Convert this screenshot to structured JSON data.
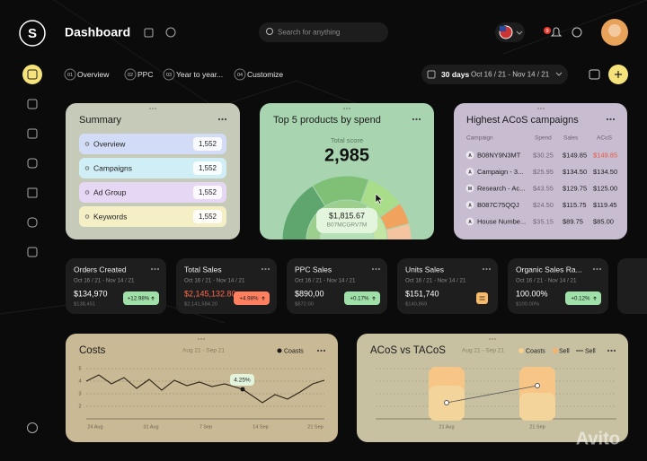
{
  "header": {
    "logo": "S",
    "title": "Dashboard",
    "search": "Search for anything",
    "notifications": "9"
  },
  "tabs": [
    {
      "number": "01",
      "label": "Overview"
    },
    {
      "number": "02",
      "label": "PPC"
    },
    {
      "number": "03",
      "label": "Year to year..."
    },
    {
      "number": "04",
      "label": "Customize"
    }
  ],
  "date_range": {
    "period": "30 days",
    "range": "Oct 16 / 21 - Nov 14 / 21"
  },
  "summary": {
    "title": "Summary",
    "items": [
      {
        "label": "Overview",
        "value": "1,552",
        "color": "#d3dcf6"
      },
      {
        "label": "Campaigns",
        "value": "1,552",
        "color": "#cfeef6"
      },
      {
        "label": "Ad Group",
        "value": "1,552",
        "color": "#e6d7f4"
      },
      {
        "label": "Keywords",
        "value": "1,552",
        "color": "#f5efc6"
      }
    ]
  },
  "top_products": {
    "title": "Top 5 products by spend",
    "caption": "Total score",
    "total": "2,985",
    "tooltip": {
      "value": "$1,815.67",
      "label": "B07MCGRV7M"
    }
  },
  "acos_campaigns": {
    "title": "Highest ACoS campaigns",
    "columns": [
      "Campaign",
      "Spend",
      "Sales",
      "ACoS"
    ],
    "rows": [
      {
        "icon": "A",
        "cells": [
          "B08NY9N3MT",
          "$30.25",
          "$149.85",
          "$149.85"
        ],
        "acos_color": "#e8553a"
      },
      {
        "icon": "A",
        "cells": [
          "Campaign - 3...",
          "$25.95",
          "$134.50",
          "$134.50"
        ]
      },
      {
        "icon": "M",
        "cells": [
          "Research - Ac...",
          "$43.55",
          "$129.75",
          "$125.00"
        ]
      },
      {
        "icon": "A",
        "cells": [
          "B087C75QQJ",
          "$24.50",
          "$115.75",
          "$119.45"
        ]
      },
      {
        "icon": "A",
        "cells": [
          "House Numbe...",
          "$35.15",
          "$89.75",
          "$85.00"
        ]
      }
    ]
  },
  "kpis": [
    {
      "title": "Orders Created",
      "range": "Oct 16 / 21 - Nov 14 / 21",
      "value": "$134,970",
      "previous": "$138,451",
      "change": "+12.98%",
      "value_color": "#ffffff",
      "badge_color": "#9fe0a8"
    },
    {
      "title": "Total Sales",
      "range": "Oct 16 / 21 - Nov 14 / 21",
      "value": "$2,145,132.80",
      "previous": "$2,141,584.20",
      "change": "+4.98%",
      "value_color": "#ff6b4e",
      "badge_color": "#ff7f5e"
    },
    {
      "title": "PPC Sales",
      "range": "Oct 16 / 21 - Nov 14 / 21",
      "value": "$890,00",
      "previous": "$872.00",
      "change": "+0.17%",
      "value_color": "#ffffff",
      "badge_color": "#9fe0a8"
    },
    {
      "title": "Units Sales",
      "range": "Oct 16 / 21 - Nov 14 / 21",
      "value": "$151,740",
      "previous": "$140,869",
      "value_color": "#ffffff",
      "badge_color": "#f7b96a"
    },
    {
      "title": "Organic Sales Ra...",
      "range": "Oct 16 / 21 - Nov 14 / 21",
      "value": "100.00%",
      "previous": "$100.00%",
      "change": "+0.12%",
      "value_color": "#ffffff",
      "badge_color": "#9fe0a8"
    }
  ],
  "costs": {
    "title": "Costs",
    "range": "Aug 21 - Sep 21",
    "legend": "Coasts",
    "tooltip": "4.25%",
    "y_labels": [
      "5",
      "4",
      "3",
      "2"
    ],
    "x_labels": [
      "24 Aug",
      "31 Aug",
      "7 Sep",
      "14 Sep",
      "21 Sep"
    ]
  },
  "acos_vs_tacos": {
    "title": "ACoS vs TACoS",
    "range": "Aug 21 - Sep 21",
    "legend": [
      "Coasts",
      "Sell",
      "Sell"
    ],
    "x_labels": [
      "21 Aug",
      "21 Sep"
    ]
  },
  "watermark": "Avito"
}
